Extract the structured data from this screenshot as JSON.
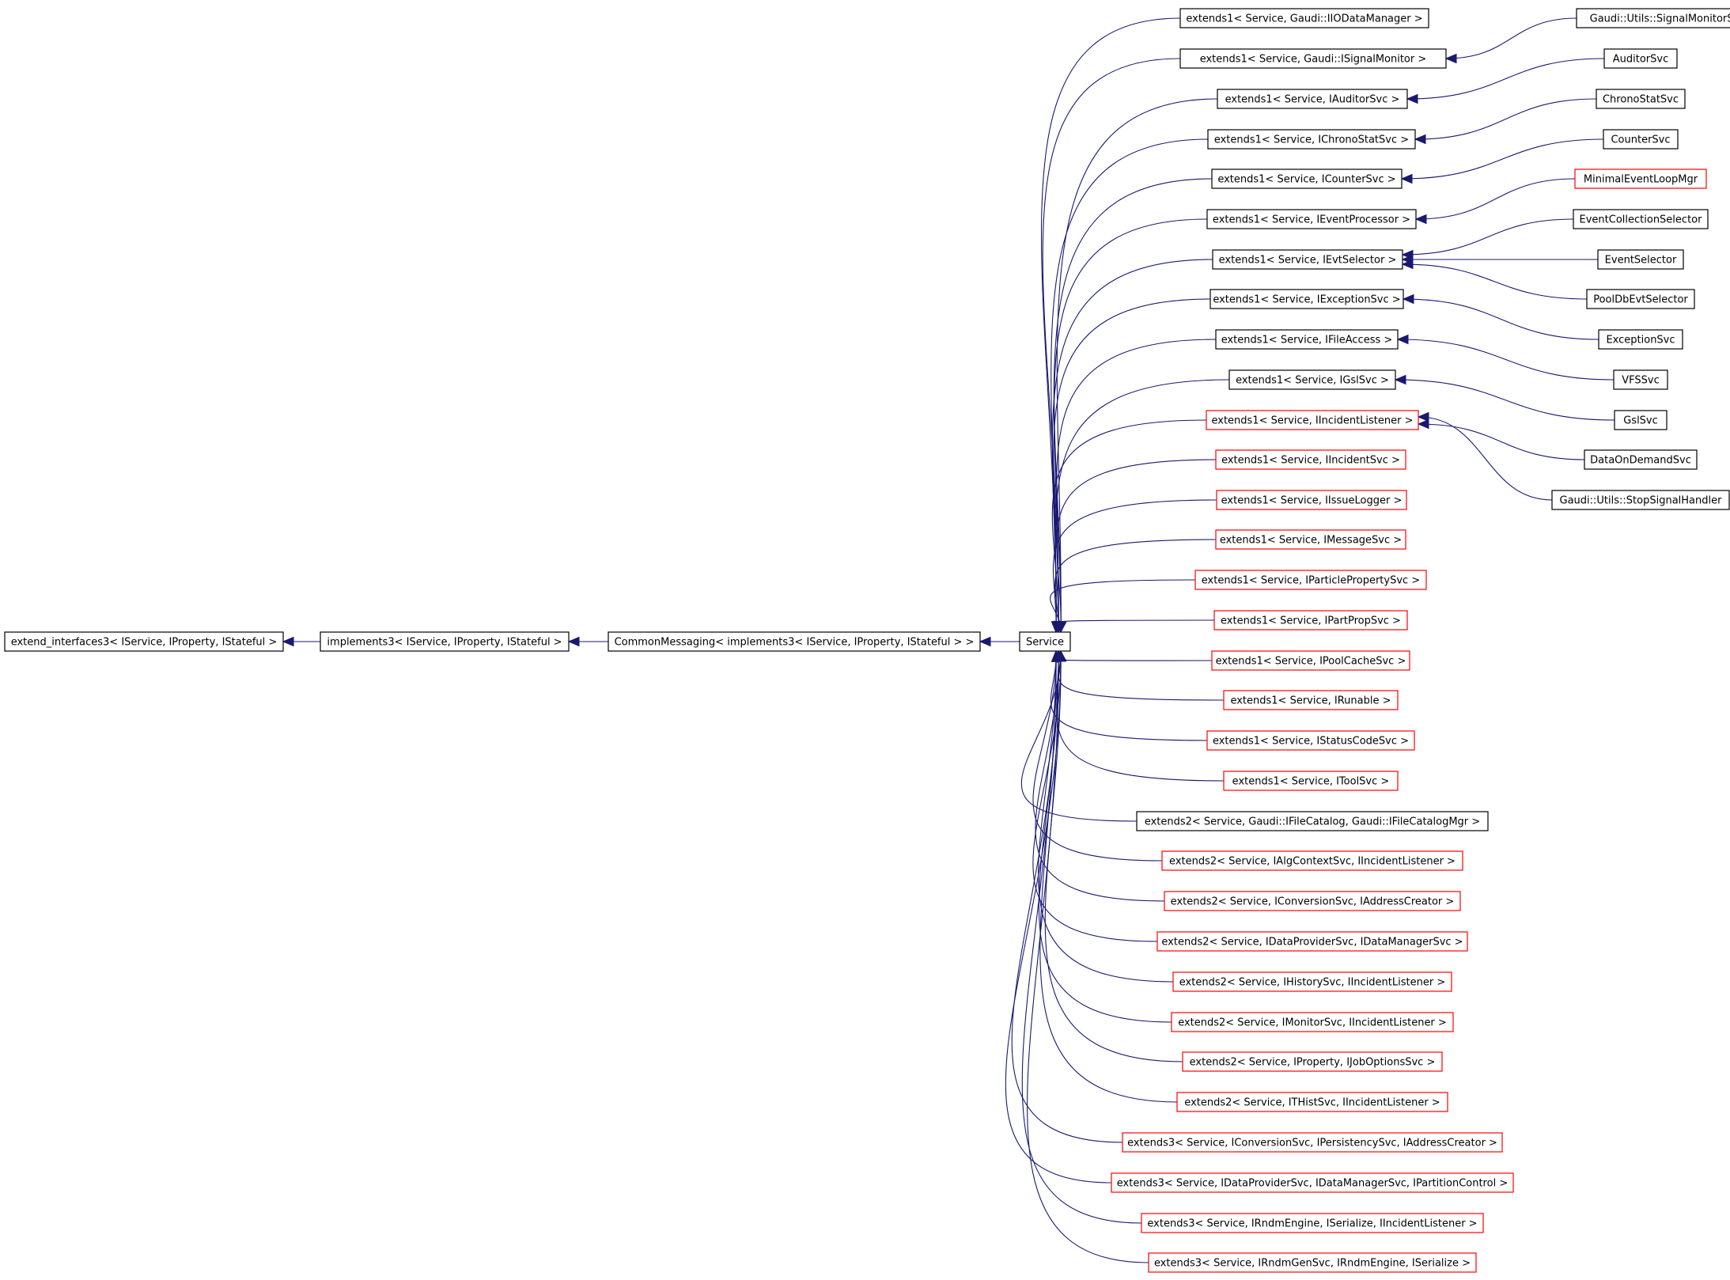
{
  "diagram": {
    "colors": {
      "edge": "#191970",
      "border_default": "#000000",
      "border_truncated": "#ff0000",
      "focus_fill": "#bfbfbf"
    },
    "nodes": [
      {
        "id": "extend_interfaces3",
        "label": "extend_interfaces3< IService, IProperty, IStateful >",
        "border": "black"
      },
      {
        "id": "implements3",
        "label": "implements3< IService, IProperty, IStateful >",
        "border": "black"
      },
      {
        "id": "CommonMessaging",
        "label": "CommonMessaging< implements3< IService, IProperty, IStateful > >",
        "border": "black"
      },
      {
        "id": "Service",
        "label": "Service",
        "border": "black",
        "focus": true
      },
      {
        "id": "e1_IIODataManager",
        "label": "extends1< Service, Gaudi::IIODataManager >",
        "border": "black"
      },
      {
        "id": "e1_ISignalMonitor",
        "label": "extends1< Service, Gaudi::ISignalMonitor >",
        "border": "black"
      },
      {
        "id": "e1_IAuditorSvc",
        "label": "extends1< Service, IAuditorSvc >",
        "border": "black"
      },
      {
        "id": "e1_IChronoStatSvc",
        "label": "extends1< Service, IChronoStatSvc >",
        "border": "black"
      },
      {
        "id": "e1_ICounterSvc",
        "label": "extends1< Service, ICounterSvc >",
        "border": "black"
      },
      {
        "id": "e1_IEventProcessor",
        "label": "extends1< Service, IEventProcessor >",
        "border": "black"
      },
      {
        "id": "e1_IEvtSelector",
        "label": "extends1< Service, IEvtSelector >",
        "border": "black"
      },
      {
        "id": "e1_IExceptionSvc",
        "label": "extends1< Service, IExceptionSvc >",
        "border": "black"
      },
      {
        "id": "e1_IFileAccess",
        "label": "extends1< Service, IFileAccess >",
        "border": "black"
      },
      {
        "id": "e1_IGslSvc",
        "label": "extends1< Service, IGslSvc >",
        "border": "black"
      },
      {
        "id": "e1_IIncidentListener",
        "label": "extends1< Service, IIncidentListener >",
        "border": "red"
      },
      {
        "id": "e1_IIncidentSvc",
        "label": "extends1< Service, IIncidentSvc >",
        "border": "red"
      },
      {
        "id": "e1_IIssueLogger",
        "label": "extends1< Service, IIssueLogger >",
        "border": "red"
      },
      {
        "id": "e1_IMessageSvc",
        "label": "extends1< Service, IMessageSvc >",
        "border": "red"
      },
      {
        "id": "e1_IParticlePropertySvc",
        "label": "extends1< Service, IParticlePropertySvc >",
        "border": "red"
      },
      {
        "id": "e1_IPartPropSvc",
        "label": "extends1< Service, IPartPropSvc >",
        "border": "red"
      },
      {
        "id": "e1_IPoolCacheSvc",
        "label": "extends1< Service, IPoolCacheSvc >",
        "border": "red"
      },
      {
        "id": "e1_IRunable",
        "label": "extends1< Service, IRunable >",
        "border": "red"
      },
      {
        "id": "e1_IStatusCodeSvc",
        "label": "extends1< Service, IStatusCodeSvc >",
        "border": "red"
      },
      {
        "id": "e1_IToolSvc",
        "label": "extends1< Service, IToolSvc >",
        "border": "red"
      },
      {
        "id": "e2_IFileCatalog",
        "label": "extends2< Service, Gaudi::IFileCatalog, Gaudi::IFileCatalogMgr >",
        "border": "black"
      },
      {
        "id": "e2_IAlgContextSvc",
        "label": "extends2< Service, IAlgContextSvc, IIncidentListener >",
        "border": "red"
      },
      {
        "id": "e2_IConversionSvc",
        "label": "extends2< Service, IConversionSvc, IAddressCreator >",
        "border": "red"
      },
      {
        "id": "e2_IDataProviderSvc",
        "label": "extends2< Service, IDataProviderSvc, IDataManagerSvc >",
        "border": "red"
      },
      {
        "id": "e2_IHistorySvc",
        "label": "extends2< Service, IHistorySvc, IIncidentListener >",
        "border": "red"
      },
      {
        "id": "e2_IMonitorSvc",
        "label": "extends2< Service, IMonitorSvc, IIncidentListener >",
        "border": "red"
      },
      {
        "id": "e2_IProperty",
        "label": "extends2< Service, IProperty, IJobOptionsSvc >",
        "border": "red"
      },
      {
        "id": "e2_ITHistSvc",
        "label": "extends2< Service, ITHistSvc, IIncidentListener >",
        "border": "red"
      },
      {
        "id": "e3_IConversionSvc",
        "label": "extends3< Service, IConversionSvc, IPersistencySvc, IAddressCreator >",
        "border": "red"
      },
      {
        "id": "e3_IDataProviderSvc",
        "label": "extends3< Service, IDataProviderSvc, IDataManagerSvc, IPartitionControl >",
        "border": "red"
      },
      {
        "id": "e3_IRndmEngine",
        "label": "extends3< Service, IRndmEngine, ISerialize, IIncidentListener >",
        "border": "red"
      },
      {
        "id": "e3_IRndmGenSvc",
        "label": "extends3< Service, IRndmGenSvc, IRndmEngine, ISerialize >",
        "border": "red"
      },
      {
        "id": "SignalMonitorSvc",
        "label": "Gaudi::Utils::SignalMonitorSvc",
        "border": "black"
      },
      {
        "id": "AuditorSvc",
        "label": "AuditorSvc",
        "border": "black"
      },
      {
        "id": "ChronoStatSvc",
        "label": "ChronoStatSvc",
        "border": "black"
      },
      {
        "id": "CounterSvc",
        "label": "CounterSvc",
        "border": "black"
      },
      {
        "id": "MinimalEventLoopMgr",
        "label": "MinimalEventLoopMgr",
        "border": "red"
      },
      {
        "id": "EventCollectionSelector",
        "label": "EventCollectionSelector",
        "border": "black"
      },
      {
        "id": "EventSelector",
        "label": "EventSelector",
        "border": "black"
      },
      {
        "id": "PoolDbEvtSelector",
        "label": "PoolDbEvtSelector",
        "border": "black"
      },
      {
        "id": "ExceptionSvc",
        "label": "ExceptionSvc",
        "border": "black"
      },
      {
        "id": "VFSSvc",
        "label": "VFSSvc",
        "border": "black"
      },
      {
        "id": "GslSvc",
        "label": "GslSvc",
        "border": "black"
      },
      {
        "id": "DataOnDemandSvc",
        "label": "DataOnDemandSvc",
        "border": "black"
      },
      {
        "id": "StopSignalHandler",
        "label": "Gaudi::Utils::StopSignalHandler",
        "border": "black"
      }
    ],
    "edges": [
      {
        "from": "implements3",
        "to": "extend_interfaces3"
      },
      {
        "from": "CommonMessaging",
        "to": "implements3"
      },
      {
        "from": "Service",
        "to": "CommonMessaging"
      },
      {
        "from": "e1_IIODataManager",
        "to": "Service"
      },
      {
        "from": "e1_ISignalMonitor",
        "to": "Service"
      },
      {
        "from": "e1_IAuditorSvc",
        "to": "Service"
      },
      {
        "from": "e1_IChronoStatSvc",
        "to": "Service"
      },
      {
        "from": "e1_ICounterSvc",
        "to": "Service"
      },
      {
        "from": "e1_IEventProcessor",
        "to": "Service"
      },
      {
        "from": "e1_IEvtSelector",
        "to": "Service"
      },
      {
        "from": "e1_IExceptionSvc",
        "to": "Service"
      },
      {
        "from": "e1_IFileAccess",
        "to": "Service"
      },
      {
        "from": "e1_IGslSvc",
        "to": "Service"
      },
      {
        "from": "e1_IIncidentListener",
        "to": "Service"
      },
      {
        "from": "e1_IIncidentSvc",
        "to": "Service"
      },
      {
        "from": "e1_IIssueLogger",
        "to": "Service"
      },
      {
        "from": "e1_IMessageSvc",
        "to": "Service"
      },
      {
        "from": "e1_IParticlePropertySvc",
        "to": "Service"
      },
      {
        "from": "e1_IPartPropSvc",
        "to": "Service"
      },
      {
        "from": "e1_IPoolCacheSvc",
        "to": "Service"
      },
      {
        "from": "e1_IRunable",
        "to": "Service"
      },
      {
        "from": "e1_IStatusCodeSvc",
        "to": "Service"
      },
      {
        "from": "e1_IToolSvc",
        "to": "Service"
      },
      {
        "from": "e2_IFileCatalog",
        "to": "Service"
      },
      {
        "from": "e2_IAlgContextSvc",
        "to": "Service"
      },
      {
        "from": "e2_IConversionSvc",
        "to": "Service"
      },
      {
        "from": "e2_IDataProviderSvc",
        "to": "Service"
      },
      {
        "from": "e2_IHistorySvc",
        "to": "Service"
      },
      {
        "from": "e2_IMonitorSvc",
        "to": "Service"
      },
      {
        "from": "e2_IProperty",
        "to": "Service"
      },
      {
        "from": "e2_ITHistSvc",
        "to": "Service"
      },
      {
        "from": "e3_IConversionSvc",
        "to": "Service"
      },
      {
        "from": "e3_IDataProviderSvc",
        "to": "Service"
      },
      {
        "from": "e3_IRndmEngine",
        "to": "Service"
      },
      {
        "from": "e3_IRndmGenSvc",
        "to": "Service"
      },
      {
        "from": "SignalMonitorSvc",
        "to": "e1_ISignalMonitor"
      },
      {
        "from": "AuditorSvc",
        "to": "e1_IAuditorSvc"
      },
      {
        "from": "ChronoStatSvc",
        "to": "e1_IChronoStatSvc"
      },
      {
        "from": "CounterSvc",
        "to": "e1_ICounterSvc"
      },
      {
        "from": "MinimalEventLoopMgr",
        "to": "e1_IEventProcessor"
      },
      {
        "from": "EventCollectionSelector",
        "to": "e1_IEvtSelector"
      },
      {
        "from": "EventSelector",
        "to": "e1_IEvtSelector"
      },
      {
        "from": "PoolDbEvtSelector",
        "to": "e1_IEvtSelector"
      },
      {
        "from": "ExceptionSvc",
        "to": "e1_IExceptionSvc"
      },
      {
        "from": "VFSSvc",
        "to": "e1_IFileAccess"
      },
      {
        "from": "GslSvc",
        "to": "e1_IGslSvc"
      },
      {
        "from": "DataOnDemandSvc",
        "to": "e1_IIncidentListener"
      },
      {
        "from": "StopSignalHandler",
        "to": "e1_IIncidentListener"
      }
    ]
  }
}
